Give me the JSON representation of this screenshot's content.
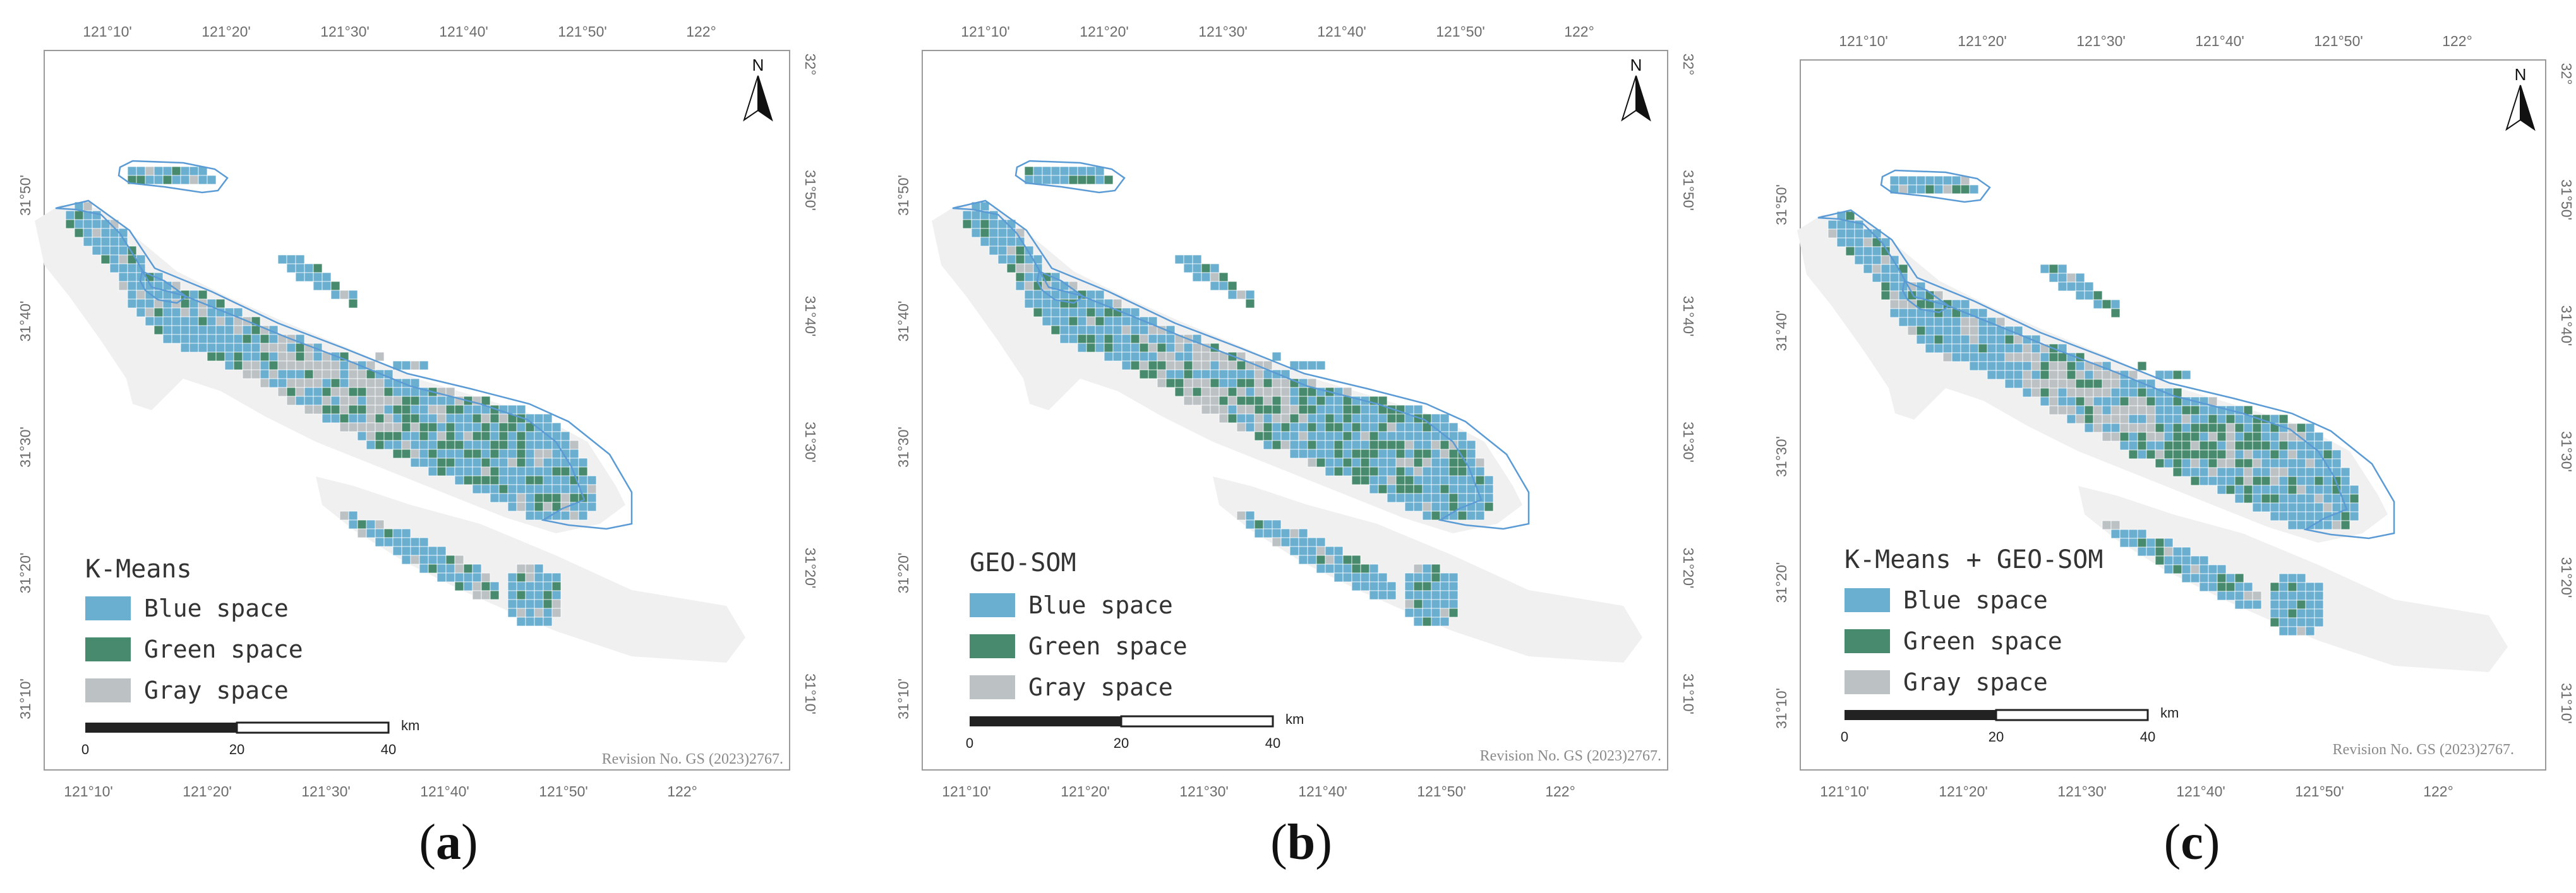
{
  "colors": {
    "blue_space": "#6aaed0",
    "green_space": "#478a6d",
    "gray_space": "#bcc2c4",
    "river_outline": "#5b9bd5",
    "background_land": "#f0f0f0",
    "frame": "#9a9a9a"
  },
  "north_arrow_label": "N",
  "longitude_ticks": [
    "121°10'",
    "121°20'",
    "121°30'",
    "121°40'",
    "121°50'",
    "122°"
  ],
  "latitude_ticks": [
    "32°",
    "31°50'",
    "31°40'",
    "31°30'",
    "31°20'",
    "31°10'"
  ],
  "legend_items": [
    {
      "label": "Blue space",
      "color_key": "blue_space"
    },
    {
      "label": "Green space",
      "color_key": "green_space"
    },
    {
      "label": "Gray space",
      "color_key": "gray_space"
    }
  ],
  "scale_bar": {
    "ticks": [
      "0",
      "20",
      "40"
    ],
    "unit": "km"
  },
  "revision_note": "Revision No. GS (2023)2767.",
  "panels": [
    {
      "id": "a",
      "method": "K-Means",
      "caption_letter": "a",
      "green_share": 0.16,
      "gray_share": 0.11
    },
    {
      "id": "b",
      "method": "GEO-SOM",
      "caption_letter": "b",
      "green_share": 0.2,
      "gray_share": 0.08
    },
    {
      "id": "c",
      "method": "K-Means + GEO-SOM",
      "caption_letter": "c",
      "green_share": 0.18,
      "gray_share": 0.1
    }
  ]
}
